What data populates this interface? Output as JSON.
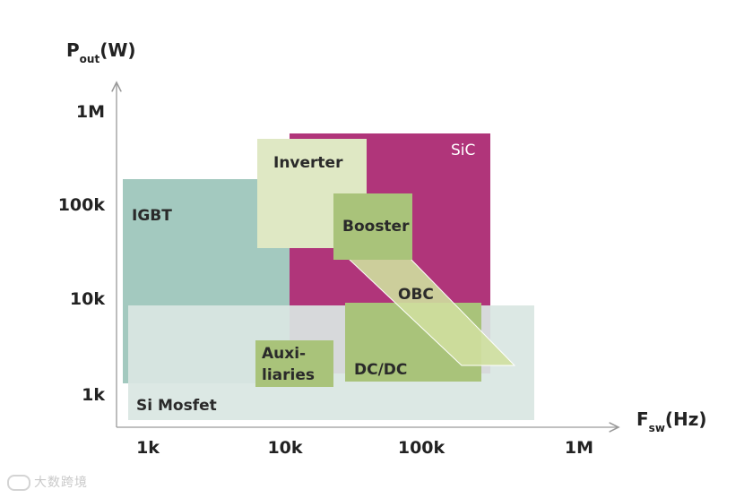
{
  "diagram": {
    "y_axis": {
      "title_main": "P",
      "title_sub": "out",
      "title_unit": "(W)",
      "ticks": [
        "1M",
        "100k",
        "10k",
        "1k"
      ]
    },
    "x_axis": {
      "title_main": "F",
      "title_sub": "sw",
      "title_unit": "(Hz)",
      "ticks": [
        "1k",
        "10k",
        "100k",
        "1M"
      ]
    },
    "regions": {
      "igbt": {
        "label": "IGBT",
        "color": "#a3c9bf"
      },
      "si_mosfet": {
        "label": "Si Mosfet",
        "color": "#d9e6e2"
      },
      "sic": {
        "label": "SiC",
        "color": "#b0357a"
      },
      "inverter": {
        "label": "Inverter",
        "color": "#dfe8c4"
      },
      "booster": {
        "label": "Booster",
        "color": "#a9c37a"
      },
      "obc": {
        "label": "OBC",
        "color": "#cfdf9f"
      },
      "dcdc": {
        "label": "DC/DC",
        "color": "#a9c37a"
      },
      "auxiliaries": {
        "label_line1": "Auxi-",
        "label_line2": "liaries",
        "color": "#a9c37a"
      }
    }
  },
  "watermark": {
    "text": "大数跨境"
  }
}
